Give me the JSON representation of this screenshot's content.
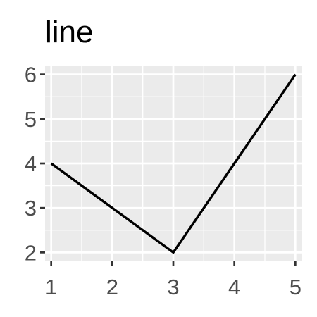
{
  "chart_data": {
    "type": "line",
    "title": "line",
    "xlabel": "",
    "ylabel": "",
    "x": [
      1,
      2,
      3,
      4,
      5
    ],
    "series": [
      {
        "values": [
          4,
          3,
          2,
          4,
          6
        ]
      }
    ],
    "xlim": [
      0.9,
      5.1
    ],
    "ylim": [
      1.8,
      6.2
    ],
    "xticks": [
      1,
      2,
      3,
      4,
      5
    ],
    "yticks": [
      2,
      3,
      4,
      5,
      6
    ],
    "grid": true,
    "legend": "none",
    "colors": {
      "panel_background": "#ebebeb",
      "grid_major": "#ffffff",
      "grid_minor": "#ffffff",
      "line": "#000000",
      "tick_text": "#4d4d4d",
      "tick_mark": "#333333",
      "title_text": "#000000"
    }
  }
}
